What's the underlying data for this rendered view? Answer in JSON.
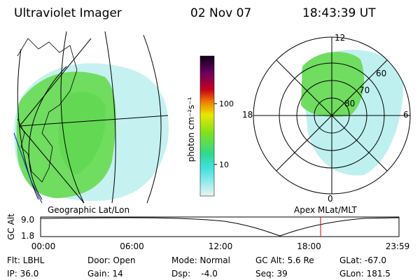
{
  "header": {
    "title": "Ultraviolet Imager",
    "date": "02 Nov 07",
    "time": "18:43:39 UT"
  },
  "map": {
    "label": "Geographic Lat/Lon"
  },
  "colorbar": {
    "label": "photon cm⁻²s⁻¹",
    "ticks": [
      "100",
      "10"
    ]
  },
  "polar": {
    "label": "Apex MLat/MLT",
    "mlt": [
      "12",
      "18",
      "6",
      "0"
    ],
    "mlat": [
      "60",
      "70",
      "80"
    ]
  },
  "strip": {
    "axis_label": "GC Alt",
    "y_ticks": [
      "9.0",
      "1.8"
    ],
    "x_ticks": [
      "00:00",
      "06:00",
      "12:00",
      "18:00",
      "23:59"
    ]
  },
  "footer": [
    [
      "Flt: LBHL",
      "Door: Open",
      "Mode: Normal",
      "GC Alt: 5.6 Re",
      "GLat: -67.0"
    ],
    [
      "IP: 36.0",
      "Gain: 14",
      "Dsp:    -4.0",
      "Seq: 39",
      "GLon: 181.5"
    ]
  ]
}
